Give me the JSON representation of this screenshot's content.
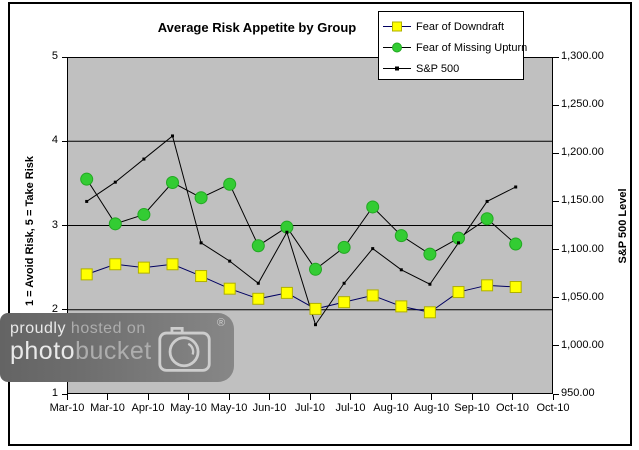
{
  "chart_data": {
    "type": "line",
    "title": "Average Risk Appetite by Group",
    "plot_bg_color": "#C0C0C0",
    "grid_values_left_axis": [
      4,
      3,
      2
    ],
    "y_axis_left": {
      "title": "1 = Avoid Risk, 5 = Take Risk",
      "ticks": [
        "5",
        "4",
        "3",
        "2",
        "1"
      ],
      "min": 1,
      "max": 5
    },
    "y_axis_right": {
      "title": "S&P 500 Level",
      "ticks": [
        "1,300.00",
        "1,250.00",
        "1,200.00",
        "1,150.00",
        "1,100.00",
        "1,050.00",
        "1,000.00",
        "950.00"
      ],
      "min": 950,
      "max": 1300
    },
    "x_tick_labels": [
      "Mar-10",
      "Mar-10",
      "Apr-10",
      "May-10",
      "May-10",
      "Jun-10",
      "Jul-10",
      "Jul-10",
      "Aug-10",
      "Aug-10",
      "Sep-10",
      "Oct-10",
      "Oct-10"
    ],
    "series": [
      {
        "name": "Fear of Downdraft",
        "axis": "left",
        "marker": "square",
        "marker_color": "#FFFF00",
        "marker_edge": "#b0b000",
        "line_color": "#000060",
        "values": [
          2.42,
          2.54,
          2.5,
          2.54,
          2.4,
          2.25,
          2.13,
          2.2,
          2.01,
          2.09,
          2.17,
          2.04,
          1.97,
          2.21,
          2.29,
          2.27
        ]
      },
      {
        "name": "Fear of Missing Upturn",
        "axis": "left",
        "marker": "circle",
        "marker_color": "#33CC33",
        "marker_edge": "#22a822",
        "line_color": "#000000",
        "values": [
          3.55,
          3.02,
          3.13,
          3.51,
          3.33,
          3.49,
          2.76,
          2.98,
          2.48,
          2.74,
          3.22,
          2.88,
          2.66,
          2.85,
          3.08,
          2.78
        ]
      },
      {
        "name": "S&P 500",
        "axis": "right",
        "marker": "dash",
        "marker_color": "#000000",
        "marker_edge": "#000000",
        "line_color": "#000000",
        "values": [
          1150,
          1170,
          1194,
          1218,
          1107,
          1088,
          1065,
          1118,
          1022,
          1065,
          1101,
          1079,
          1064,
          1107,
          1150,
          1165
        ]
      }
    ]
  },
  "watermark": {
    "line1_strong": "proudly",
    "line1_rest": " hosted on",
    "line2_strong": "photo",
    "line2_rest": "bucket",
    "registered": "®",
    "icon": "camera-icon"
  }
}
